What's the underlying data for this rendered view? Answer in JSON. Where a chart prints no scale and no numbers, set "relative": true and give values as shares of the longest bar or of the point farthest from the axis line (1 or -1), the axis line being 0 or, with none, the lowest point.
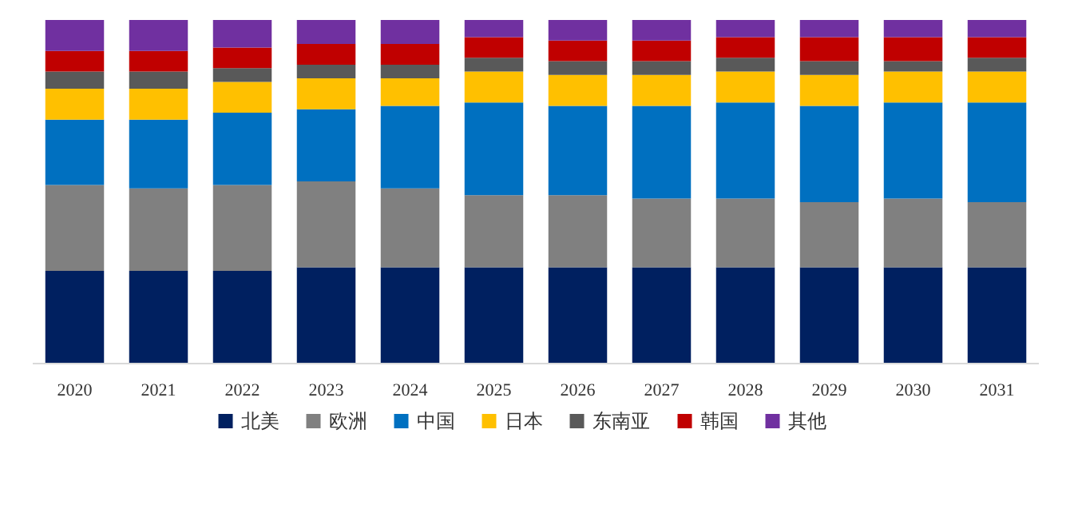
{
  "chart_data": {
    "type": "bar",
    "stacked": true,
    "relative": true,
    "legend": "bottom",
    "grid": false,
    "categories": [
      "2020",
      "2021",
      "2022",
      "2023",
      "2024",
      "2025",
      "2026",
      "2027",
      "2028",
      "2029",
      "2030",
      "2031"
    ],
    "series": [
      {
        "name": "北美",
        "color": "#002060",
        "values": [
          0.27,
          0.27,
          0.27,
          0.28,
          0.28,
          0.28,
          0.28,
          0.28,
          0.28,
          0.28,
          0.28,
          0.28
        ]
      },
      {
        "name": "欧洲",
        "color": "#808080",
        "values": [
          0.25,
          0.24,
          0.25,
          0.25,
          0.23,
          0.21,
          0.21,
          0.2,
          0.2,
          0.19,
          0.2,
          0.19
        ]
      },
      {
        "name": "中国",
        "color": "#0070c0",
        "values": [
          0.19,
          0.2,
          0.21,
          0.21,
          0.24,
          0.27,
          0.26,
          0.27,
          0.28,
          0.28,
          0.28,
          0.29
        ]
      },
      {
        "name": "日本",
        "color": "#ffc000",
        "values": [
          0.09,
          0.09,
          0.09,
          0.09,
          0.08,
          0.09,
          0.09,
          0.09,
          0.09,
          0.09,
          0.09,
          0.09
        ]
      },
      {
        "name": "东南亚",
        "color": "#595959",
        "values": [
          0.05,
          0.05,
          0.04,
          0.04,
          0.04,
          0.04,
          0.04,
          0.04,
          0.04,
          0.04,
          0.03,
          0.04
        ]
      },
      {
        "name": "韩国",
        "color": "#c00000",
        "values": [
          0.06,
          0.06,
          0.06,
          0.06,
          0.06,
          0.06,
          0.06,
          0.06,
          0.06,
          0.07,
          0.07,
          0.06
        ]
      },
      {
        "name": "其他",
        "color": "#7030a0",
        "values": [
          0.09,
          0.09,
          0.08,
          0.07,
          0.07,
          0.05,
          0.06,
          0.06,
          0.05,
          0.05,
          0.05,
          0.05
        ]
      }
    ]
  }
}
